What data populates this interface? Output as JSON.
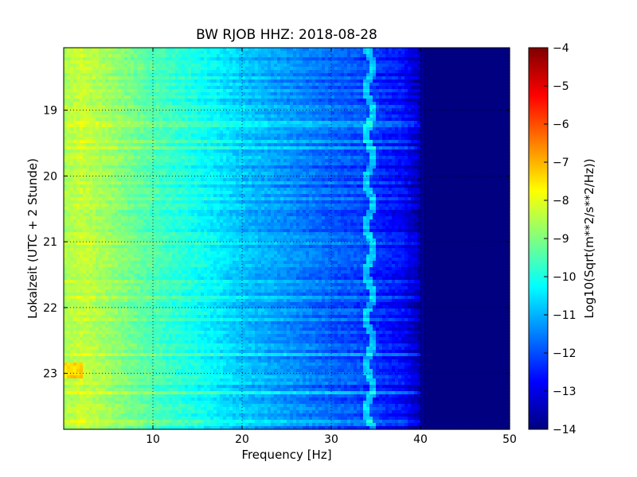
{
  "chart_data": {
    "type": "heatmap",
    "title": "BW RJOB HHZ: 2018-08-28",
    "xlabel": "Frequency [Hz]",
    "ylabel": "Lokalzeit (UTC + 2 Stunde)",
    "colorbar_label": "Log10(Sqrt(m**2/s**2/Hz))",
    "colormap": "jet",
    "grid": true,
    "xlim": [
      0,
      50
    ],
    "ylim": [
      18.05,
      23.85
    ],
    "y_inverted": true,
    "xticks": [
      10,
      20,
      30,
      40,
      50
    ],
    "xtick_labels": [
      "10",
      "20",
      "30",
      "40",
      "50"
    ],
    "yticks": [
      19,
      20,
      21,
      22,
      23
    ],
    "ytick_labels": [
      "19",
      "20",
      "21",
      "22",
      "23"
    ],
    "clim": [
      -14,
      -4
    ],
    "cticks": [
      -4,
      -5,
      -6,
      -7,
      -8,
      -9,
      -10,
      -11,
      -12,
      -13,
      -14
    ],
    "ctick_labels": [
      "−4",
      "−5",
      "−6",
      "−7",
      "−8",
      "−9",
      "−10",
      "−11",
      "−12",
      "−13",
      "−14"
    ],
    "spectral_profile": {
      "frequency_hz": [
        0,
        2,
        5,
        10,
        15,
        20,
        25,
        30,
        33,
        35,
        38,
        39.5,
        40.5,
        45,
        50
      ],
      "log10_amplitude": [
        -8.6,
        -8.3,
        -8.7,
        -9.5,
        -10.1,
        -10.8,
        -11.3,
        -11.8,
        -12.0,
        -12.3,
        -12.7,
        -13.3,
        -14.0,
        -14.0,
        -14.0
      ]
    },
    "annotations": [
      {
        "label": "narrow spectral line near 34 Hz",
        "x": 34.3
      },
      {
        "label": "elevated low-frequency amplitude",
        "x": 1.0,
        "y": 22.95
      }
    ]
  }
}
